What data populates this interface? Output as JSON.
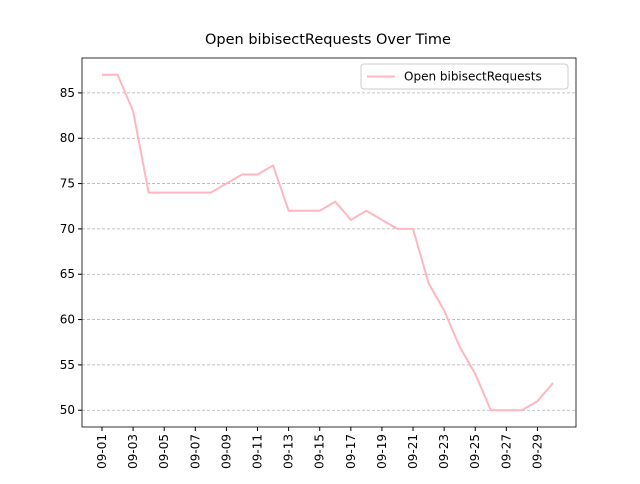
{
  "chart_data": {
    "type": "line",
    "title": "Open bibisectRequests Over Time",
    "categories": [
      "09-01",
      null,
      "09-03",
      null,
      "09-05",
      null,
      "09-07",
      null,
      "09-09",
      null,
      "09-11",
      null,
      "09-13",
      null,
      "09-15",
      null,
      "09-17",
      null,
      "09-19",
      null,
      "09-21",
      null,
      "09-23",
      null,
      "09-25",
      null,
      "09-27",
      null,
      "09-29",
      null
    ],
    "series": [
      {
        "name": "Open bibisectRequests",
        "color": "#ffb6c1",
        "values": [
          87,
          87,
          83,
          74,
          74,
          74,
          74,
          74,
          75,
          76,
          76,
          77,
          72,
          72,
          72,
          73,
          71,
          72,
          71,
          70,
          70,
          64,
          61,
          57,
          54,
          50,
          50,
          50,
          51,
          53
        ]
      }
    ],
    "ylim": [
      48.15,
      88.85
    ],
    "yticks": [
      50,
      55,
      60,
      65,
      70,
      75,
      80,
      85
    ],
    "grid": true,
    "legend": "upper right"
  }
}
